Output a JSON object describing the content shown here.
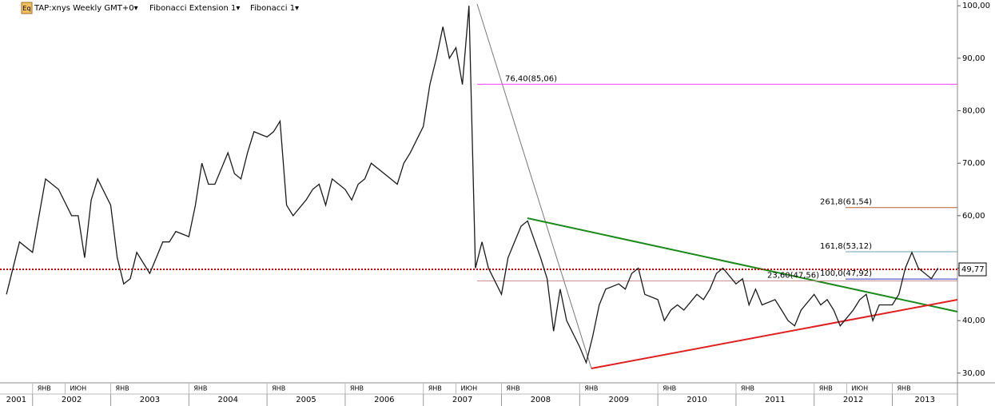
{
  "header": {
    "icon": "Eq",
    "symbol": "TAP:xnys Weekly GMT+0▾",
    "tool1": "Fibonacci Extension 1▾",
    "tool2": "Fibonacci 1▾"
  },
  "chart_data": {
    "type": "line",
    "color": "#1a1a1a",
    "xlim": [
      "2001-08",
      "2013-11"
    ],
    "ylim": [
      28.3,
      101.1
    ],
    "yticks": [
      {
        "value": 30,
        "label": "30,00"
      },
      {
        "value": 40,
        "label": "40,00"
      },
      {
        "value": 50,
        "label": "50,00"
      },
      {
        "value": 60,
        "label": "60,00"
      },
      {
        "value": 70,
        "label": "70,00"
      },
      {
        "value": 80,
        "label": "80,00"
      },
      {
        "value": 90,
        "label": "90,00"
      },
      {
        "value": 100,
        "label": "100,00"
      }
    ],
    "month_labels": [
      {
        "value": "2002-01",
        "label": "ЯНВ"
      },
      {
        "value": "2002-06",
        "label": "ИЮН"
      },
      {
        "value": "2003-01",
        "label": "ЯНВ"
      },
      {
        "value": "2004-01",
        "label": "ЯНВ"
      },
      {
        "value": "2005-01",
        "label": "ЯНВ"
      },
      {
        "value": "2006-01",
        "label": "ЯНВ"
      },
      {
        "value": "2007-01",
        "label": "ЯНВ"
      },
      {
        "value": "2007-06",
        "label": "ИЮН"
      },
      {
        "value": "2008-01",
        "label": "ЯНВ"
      },
      {
        "value": "2009-01",
        "label": "ЯНВ"
      },
      {
        "value": "2010-01",
        "label": "ЯНВ"
      },
      {
        "value": "2011-01",
        "label": "ЯНВ"
      },
      {
        "value": "2012-01",
        "label": "ЯНВ"
      },
      {
        "value": "2012-06",
        "label": "ИЮН"
      },
      {
        "value": "2013-01",
        "label": "ЯНВ"
      }
    ],
    "years": [
      "2001",
      "2002",
      "2003",
      "2004",
      "2005",
      "2006",
      "2007",
      "2008",
      "2009",
      "2010",
      "2011",
      "2012",
      "2013"
    ],
    "x": [
      "2001-09",
      "2001-11",
      "2002-01",
      "2002-03",
      "2002-05",
      "2002-07",
      "2002-08",
      "2002-09",
      "2002-10",
      "2002-11",
      "2003-01",
      "2003-02",
      "2003-03",
      "2003-04",
      "2003-05",
      "2003-07",
      "2003-08",
      "2003-09",
      "2003-10",
      "2003-11",
      "2004-01",
      "2004-02",
      "2004-03",
      "2004-04",
      "2004-05",
      "2004-07",
      "2004-08",
      "2004-09",
      "2004-10",
      "2004-11",
      "2005-01",
      "2005-02",
      "2005-03",
      "2005-04",
      "2005-05",
      "2005-07",
      "2005-08",
      "2005-09",
      "2005-10",
      "2005-11",
      "2006-01",
      "2006-02",
      "2006-03",
      "2006-04",
      "2006-05",
      "2006-07",
      "2006-08",
      "2006-09",
      "2006-10",
      "2006-11",
      "2007-01",
      "2007-02",
      "2007-03",
      "2007-04",
      "2007-05",
      "2007-06",
      "2007-07",
      "2007-08",
      "2007-09",
      "2007-10",
      "2007-11",
      "2008-01",
      "2008-02",
      "2008-03",
      "2008-04",
      "2008-05",
      "2008-07",
      "2008-08",
      "2008-09",
      "2008-10",
      "2008-11",
      "2009-01",
      "2009-02",
      "2009-03",
      "2009-04",
      "2009-05",
      "2009-07",
      "2009-08",
      "2009-09",
      "2009-10",
      "2009-11",
      "2010-01",
      "2010-02",
      "2010-03",
      "2010-04",
      "2010-05",
      "2010-07",
      "2010-08",
      "2010-09",
      "2010-10",
      "2010-11",
      "2011-01",
      "2011-02",
      "2011-03",
      "2011-04",
      "2011-05",
      "2011-07",
      "2011-08",
      "2011-09",
      "2011-10",
      "2011-11",
      "2012-01",
      "2012-02",
      "2012-03",
      "2012-04",
      "2012-05",
      "2012-07",
      "2012-08",
      "2012-09",
      "2012-10",
      "2012-11",
      "2013-01",
      "2013-02",
      "2013-03",
      "2013-04",
      "2013-05",
      "2013-07",
      "2013-08"
    ],
    "values": [
      45,
      55,
      53,
      67,
      65,
      60,
      60,
      52,
      63,
      67,
      62,
      52,
      47,
      48,
      53,
      49,
      52,
      55,
      55,
      57,
      56,
      62,
      70,
      66,
      66,
      72,
      68,
      67,
      72,
      76,
      75,
      76,
      78,
      62,
      60,
      63,
      65,
      66,
      62,
      67,
      65,
      63,
      66,
      67,
      70,
      68,
      67,
      66,
      70,
      72,
      77,
      85,
      90,
      96,
      90,
      92,
      85,
      100,
      50,
      55,
      50,
      45,
      52,
      55,
      58,
      59,
      52,
      48,
      38,
      46,
      40,
      35,
      32,
      37,
      43,
      46,
      47,
      46,
      49,
      50,
      45,
      44,
      40,
      42,
      43,
      42,
      45,
      44,
      46,
      49,
      50,
      47,
      48,
      43,
      46,
      43,
      44,
      42,
      40,
      39,
      42,
      45,
      43,
      44,
      42,
      39,
      42,
      44,
      45,
      40,
      43,
      43,
      45,
      50,
      53,
      50,
      48,
      50
    ],
    "levels": [
      {
        "label": "76,40(85,06)",
        "value": 85.06,
        "color": "#ff40ff"
      },
      {
        "label": "261,8(61,54)",
        "value": 61.54,
        "color": "#b06030"
      },
      {
        "label": "161,8(53,12)",
        "value": 53.12,
        "color": "#6aa0b0"
      },
      {
        "label": "100,0(47,92)",
        "value": 47.92,
        "color": "#3030c0"
      },
      {
        "label": "23,60(47,56)",
        "value": 47.56,
        "color": "#c89090"
      }
    ],
    "last_price": {
      "value": 49.77,
      "label": "49,77"
    }
  }
}
